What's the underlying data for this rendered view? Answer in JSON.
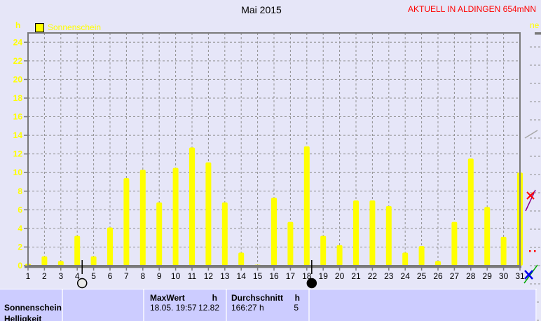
{
  "header": {
    "title": "Mai 2015",
    "station": "AKTUELL IN ALDINGEN 654mNN"
  },
  "chart_data": {
    "type": "bar",
    "title": "Mai 2015",
    "xlabel": "",
    "ylabel": "h",
    "legend_position": "top-left",
    "grid": "dashed",
    "ylim": [
      0,
      25
    ],
    "yticks": [
      0,
      2,
      4,
      6,
      8,
      10,
      12,
      14,
      16,
      18,
      20,
      22,
      24
    ],
    "categories": [
      1,
      2,
      3,
      4,
      5,
      6,
      7,
      8,
      9,
      10,
      11,
      12,
      13,
      14,
      15,
      16,
      17,
      18,
      19,
      20,
      21,
      22,
      23,
      24,
      25,
      26,
      27,
      28,
      29,
      30,
      31
    ],
    "series": [
      {
        "name": "Sonnenschein",
        "color": "#ffff00",
        "values": [
          0.2,
          1.0,
          0.5,
          3.2,
          1.0,
          4.1,
          9.4,
          10.3,
          6.8,
          10.5,
          12.7,
          11.1,
          6.8,
          1.4,
          0.1,
          7.3,
          4.7,
          12.82,
          3.2,
          2.2,
          7.0,
          7.0,
          6.4,
          1.4,
          2.1,
          0.5,
          4.7,
          11.5,
          6.3,
          3.1,
          10.0
        ]
      }
    ],
    "moon_markers": [
      {
        "day": 4.3,
        "phase": "full-moon"
      },
      {
        "day": 18.3,
        "phase": "new-moon"
      }
    ]
  },
  "summary": {
    "row_label": "Sonnenschein",
    "next_row_label": "Helligkeit",
    "maxwert_label": "MaxWert",
    "maxwert_unit": "h",
    "maxwert_datetime": "18.05.  19:57",
    "maxwert_amount": "12.82",
    "durchschnitt_label": "Durchschnitt",
    "durchschnitt_unit": "h",
    "durchschnitt_value": "166:27 h",
    "durchschnitt_amount": "5"
  },
  "right_fragment": {
    "legend_text": "ne"
  },
  "colors": {
    "background": "#e6e6f8",
    "statusbar": "#ccccff",
    "bar": "#ffff00",
    "axis_label": "#ffff00",
    "station_text": "#ff0000",
    "frame": "#7a7a7a"
  }
}
